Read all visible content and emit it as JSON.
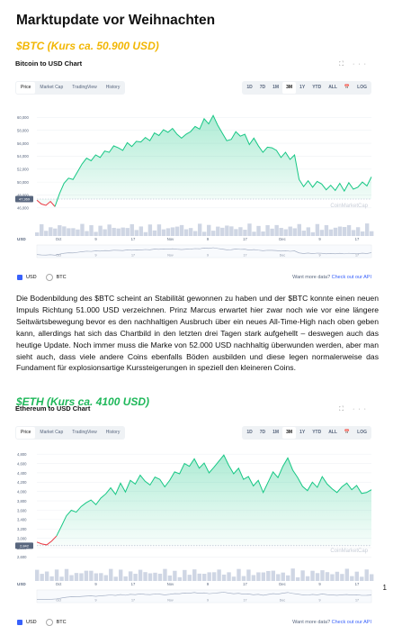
{
  "document": {
    "title": "Marktupdate vor Weihnachten",
    "page_number": "1",
    "paragraph": "Die Bodenbildung des $BTC scheint an Stabilität gewonnen zu haben und der $BTC konnte einen neuen Impuls Richtung 51.000 USD verzeichnen. Prinz Marcus erwartet hier zwar noch wie vor eine längere Seitwärtsbewegung bevor es den nachhaltigen Ausbruch über ein neues All-Time-High nach oben geben kann, allerdings hat sich das Chartbild in den letzten drei Tagen stark aufgehellt – deswegen auch das heutige Update. Noch immer muss die Marke von 52.000 USD nachhaltig überwunden werden, aber man sieht auch, dass viele andere Coins ebenfalls Böden ausbilden und diese legen normalerweise das Fundament für explosionsartige Kurssteigerungen in speziell den kleineren Coins."
  },
  "sections": {
    "btc_heading": "$BTC (Kurs ca. 50.900 USD)",
    "eth_heading": "$ETH (Kurs ca. 4100 USD)"
  },
  "widget": {
    "actions": "⛶ ···",
    "tabs": [
      "Price",
      "Market Cap",
      "TradingView",
      "History"
    ],
    "ranges": [
      "1D",
      "7D",
      "1M",
      "3M",
      "1Y",
      "YTD",
      "ALL",
      "📅",
      "LOG"
    ],
    "legend_usd": "USD",
    "legend_btc": "BTC",
    "footer_question": "Want more data?",
    "footer_link": "Check out our API",
    "watermark": "CoinMarketCap",
    "axis_currency": "USD"
  },
  "colors": {
    "up_line": "#16c784",
    "down_line": "#ea3943",
    "accent": "#3861fb",
    "btc_heading": "#f2b705",
    "eth_heading": "#1fb85a"
  },
  "chart_data": [
    {
      "type": "area",
      "title": "Bitcoin to USD Chart",
      "ylabel": "USD",
      "y_ticks": [
        "60,000",
        "58,000",
        "56,000",
        "54,000",
        "52,000",
        "50,000",
        "48,000",
        "46,000"
      ],
      "ylim": [
        45000,
        62000
      ],
      "x_ticks": [
        "Oct",
        "9",
        "17",
        "Nov",
        "9",
        "17",
        "Dec",
        "9",
        "17"
      ],
      "baseline_label": "47,369",
      "baseline": 47369,
      "series": [
        {
          "values": [
            47200,
            46600,
            46400,
            47000,
            46200,
            48200,
            49800,
            50600,
            50400,
            51600,
            52800,
            53700,
            53300,
            54200,
            53800,
            54800,
            54600,
            55600,
            55300,
            54900,
            56100,
            55500,
            56300,
            56200,
            56900,
            56400,
            57600,
            57200,
            58100,
            57700,
            58300,
            57400,
            56800,
            57400,
            57800,
            58600,
            58200,
            59800,
            59000,
            60300,
            58800,
            57600,
            56400,
            56600,
            57800,
            57100,
            57400,
            55800,
            56800,
            55600,
            54600,
            55400,
            55300,
            54900,
            53800,
            54600,
            53500,
            54200,
            50400,
            49300,
            50200,
            49200,
            50100,
            49700,
            48800,
            49500,
            48700,
            49800,
            48600,
            49900,
            48900,
            49200,
            50000,
            49400,
            50800
          ]
        }
      ]
    },
    {
      "type": "area",
      "title": "Ethereum to USD Chart",
      "ylabel": "USD",
      "y_ticks": [
        "4,800",
        "4,600",
        "4,400",
        "4,200",
        "4,000",
        "3,800",
        "3,600",
        "3,400",
        "3,200",
        "3,000",
        "2,800",
        "2,600"
      ],
      "ylim": [
        2550,
        4900
      ],
      "x_ticks": [
        "Oct",
        "9",
        "17",
        "Nov",
        "9",
        "17",
        "Dec",
        "9",
        "17"
      ],
      "baseline_label": "2,842",
      "baseline": 2842,
      "series": [
        {
          "values": [
            2920,
            2880,
            2860,
            2940,
            3050,
            3260,
            3480,
            3600,
            3560,
            3680,
            3760,
            3820,
            3720,
            3860,
            3950,
            4080,
            3940,
            4180,
            3990,
            4240,
            4160,
            4350,
            4220,
            4140,
            4310,
            4260,
            4100,
            4240,
            4420,
            4380,
            4600,
            4540,
            4700,
            4500,
            4610,
            4400,
            4520,
            4650,
            4780,
            4560,
            4380,
            4500,
            4260,
            4320,
            4120,
            4240,
            3980,
            4200,
            4420,
            4300,
            4540,
            4720,
            4460,
            4300,
            4110,
            4020,
            4200,
            4090,
            4320,
            4160,
            4060,
            3980,
            4100,
            4180,
            4040,
            4130,
            3960,
            3980,
            4040
          ]
        }
      ]
    }
  ]
}
